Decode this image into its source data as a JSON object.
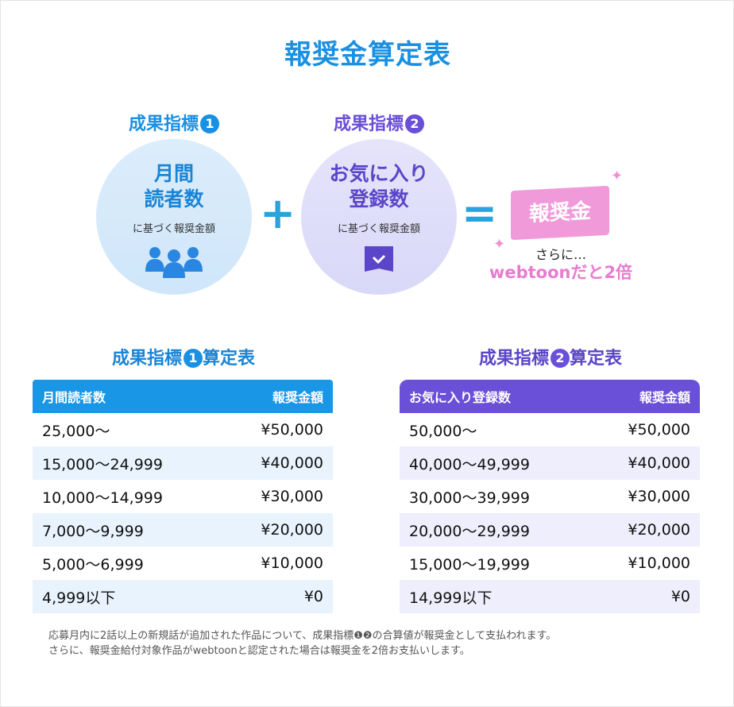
{
  "title": "報奨金算定表",
  "indicator1": {
    "label": "成果指標",
    "num": "1",
    "main": [
      "月間",
      "読者数"
    ],
    "sub": "に基づく報奨金額",
    "icon": "people-icon"
  },
  "indicator2": {
    "label": "成果指標",
    "num": "2",
    "main": [
      "お気に入り",
      "登録数"
    ],
    "sub": "に基づく報奨金額",
    "icon": "bookmark-book-icon"
  },
  "plus": "+",
  "equals": "=",
  "result": {
    "label": "報奨金",
    "more": "さらに…",
    "double": "webtoonだと2倍"
  },
  "table1": {
    "title": "成果指標",
    "num": "1",
    "title_suffix": "算定表",
    "headers": [
      "月間読者数",
      "報奨金額"
    ],
    "rows": [
      [
        "25,000〜",
        "¥50,000"
      ],
      [
        "15,000〜24,999",
        "¥40,000"
      ],
      [
        "10,000〜14,999",
        "¥30,000"
      ],
      [
        "7,000〜9,999",
        "¥20,000"
      ],
      [
        "5,000〜6,999",
        "¥10,000"
      ],
      [
        "4,999以下",
        "¥0"
      ]
    ]
  },
  "table2": {
    "title": "成果指標",
    "num": "2",
    "title_suffix": "算定表",
    "headers": [
      "お気に入り登録数",
      "報奨金額"
    ],
    "rows": [
      [
        "50,000〜",
        "¥50,000"
      ],
      [
        "40,000〜49,999",
        "¥40,000"
      ],
      [
        "30,000〜39,999",
        "¥30,000"
      ],
      [
        "20,000〜29,999",
        "¥20,000"
      ],
      [
        "15,000〜19,999",
        "¥10,000"
      ],
      [
        "14,999以下",
        "¥0"
      ]
    ]
  },
  "notes": [
    "応募月内に2話以上の新規話が追加された作品について、成果指標❶❷の合算値が報奨金として支払われます。",
    "さらに、報奨金給付対象作品がwebtoonと認定された場合は報奨金を2倍お支払いします。"
  ],
  "colors": {
    "blue": "#1a96e6",
    "purple": "#6a4fd8",
    "pink": "#f19ad9"
  }
}
